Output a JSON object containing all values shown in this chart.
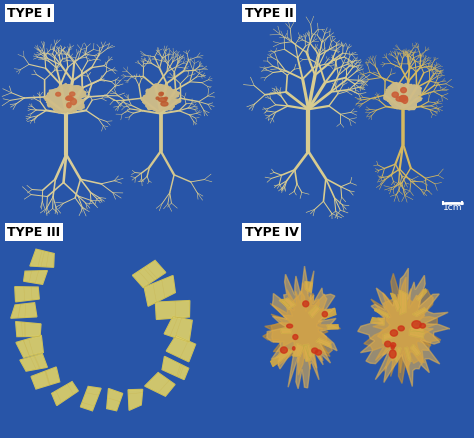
{
  "labels": [
    "TYPE I",
    "TYPE II",
    "TYPE III",
    "TYPE IV"
  ],
  "panel_bg": "#2855a8",
  "label_bg": "#ffffff",
  "label_fg": "#000000",
  "label_fontsize": 9,
  "specimen_color": "#e8d890",
  "specimen_color2": "#d4b860",
  "clot_color": "#cc4422",
  "clot_color2": "#aa3311",
  "scale_bar_color": "#ffffff",
  "scale_bar_text": "1cm",
  "divider_color": "#111111",
  "figsize": [
    4.74,
    4.38
  ],
  "dpi": 100
}
